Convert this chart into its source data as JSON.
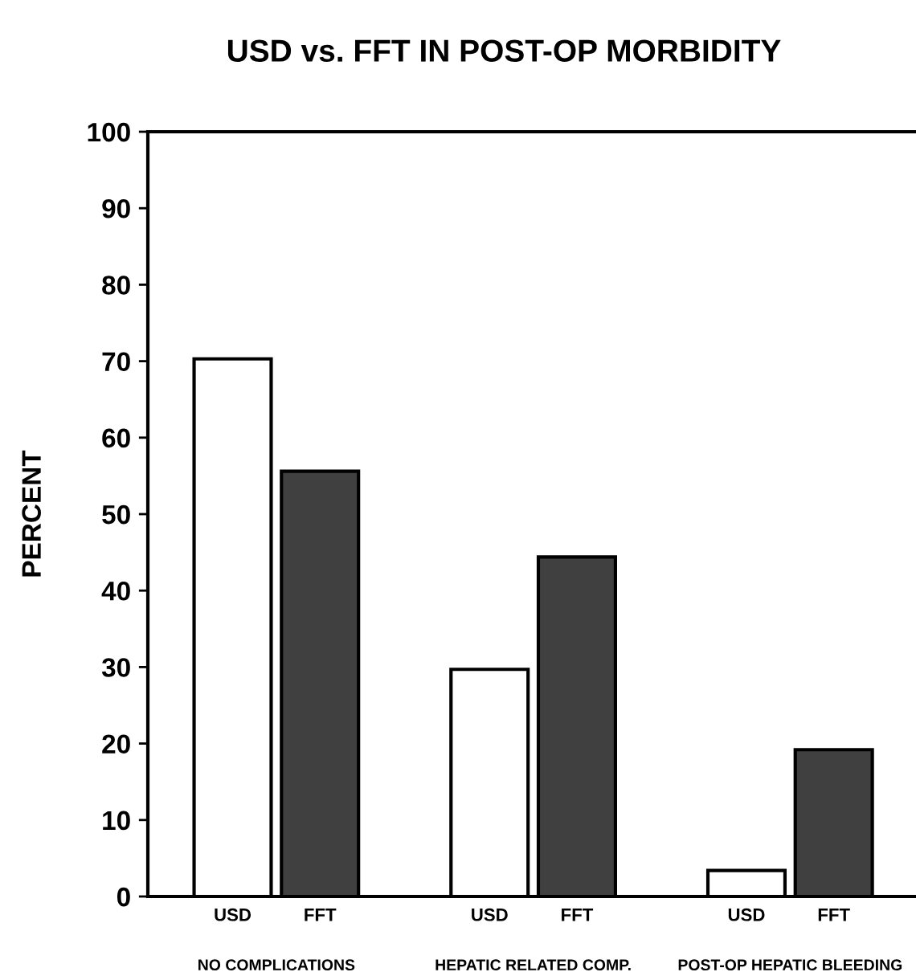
{
  "chart_data": {
    "type": "bar",
    "title": "USD vs. FFT IN POST-OP MORBIDITY",
    "ylabel": "PERCENT",
    "categories": [
      "NO COMPLICATIONS",
      "HEPATIC RELATED COMP.",
      "POST-OP HEPATIC BLEEDING"
    ],
    "series": [
      {
        "name": "USD",
        "color": "#ffffff",
        "values": [
          70.3,
          29.7,
          3.4
        ]
      },
      {
        "name": "FFT",
        "color": "#404040",
        "values": [
          55.6,
          44.4,
          19.2
        ]
      }
    ],
    "ylim": [
      0,
      100
    ],
    "yticks": [
      0,
      10,
      20,
      30,
      40,
      50,
      60,
      70,
      80,
      90,
      100
    ],
    "grid": false,
    "legend": false
  }
}
